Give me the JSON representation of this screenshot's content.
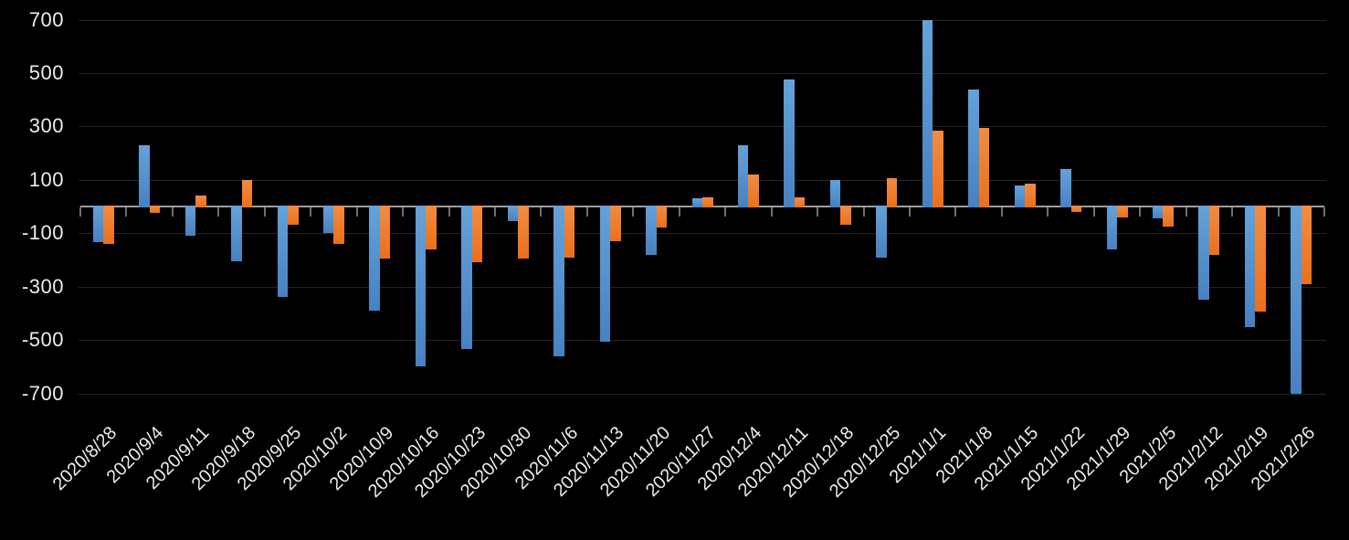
{
  "chart_data": {
    "type": "bar",
    "title": "",
    "xlabel": "",
    "ylabel": "",
    "legend": "none",
    "grid": true,
    "background": "#000000",
    "axis_color": "#9E9E9E",
    "tick_color": "#6E6E6E",
    "gridline_color": "#242424",
    "label_color": "#ECECEC",
    "ylim": [
      -700,
      700
    ],
    "y_ticks": [
      700,
      500,
      300,
      100,
      -100,
      -300,
      -500,
      -700
    ],
    "categories": [
      "2020/8/28",
      "2020/9/4",
      "2020/9/11",
      "2020/9/18",
      "2020/9/25",
      "2020/10/2",
      "2020/10/9",
      "2020/10/16",
      "2020/10/23",
      "2020/10/30",
      "2020/11/6",
      "2020/11/13",
      "2020/11/20",
      "2020/11/27",
      "2020/12/4",
      "2020/12/11",
      "2020/12/18",
      "2020/12/25",
      "2021/1/1",
      "2021/1/8",
      "2021/1/15",
      "2021/1/22",
      "2021/1/29",
      "2021/2/5",
      "2021/2/12",
      "2021/2/19",
      "2021/2/26"
    ],
    "series": [
      {
        "name": "blue",
        "color": "#5B9BD5",
        "color_top": "#64A2DA",
        "color_bottom": "#4781C1",
        "values": [
          -135,
          230,
          -110,
          -205,
          -340,
          -100,
          -390,
          -600,
          -535,
          -55,
          -560,
          -505,
          -180,
          30,
          230,
          475,
          100,
          -190,
          700,
          440,
          80,
          140,
          -160,
          -45,
          -350,
          -450,
          -700
        ]
      },
      {
        "name": "orange",
        "color": "#ED7D31",
        "color_top": "#F18C42",
        "color_bottom": "#EC6F1B",
        "values": [
          -140,
          -25,
          40,
          100,
          -70,
          -140,
          -195,
          -160,
          -210,
          -195,
          -190,
          -130,
          -80,
          35,
          120,
          35,
          -70,
          105,
          285,
          295,
          85,
          -20,
          -40,
          -75,
          -180,
          -395,
          -290
        ]
      }
    ]
  }
}
